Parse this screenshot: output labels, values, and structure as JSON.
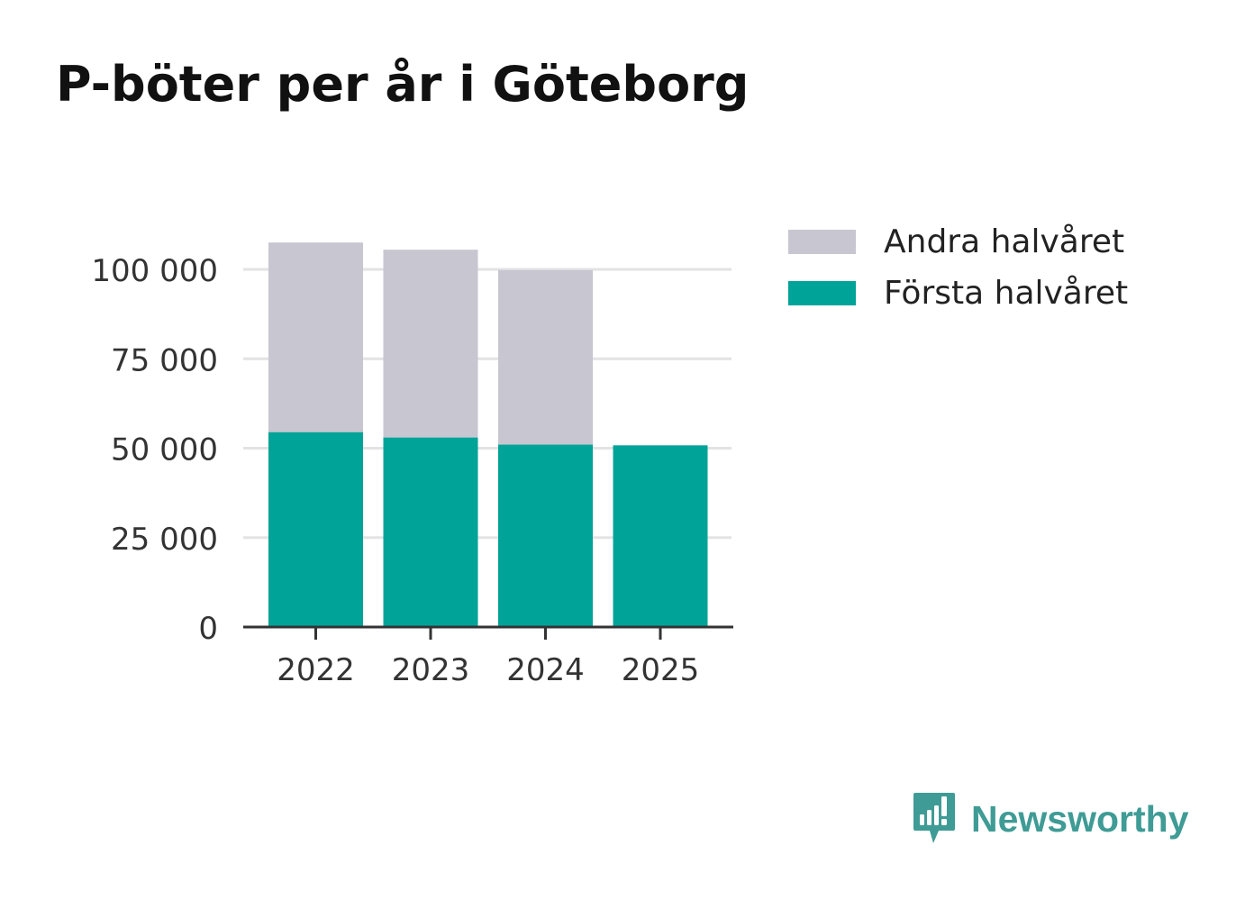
{
  "chart_data": {
    "type": "bar",
    "stacked": true,
    "title": "P-böter per år i Göteborg",
    "xlabel": "",
    "ylabel": "",
    "categories": [
      "2022",
      "2023",
      "2024",
      "2025"
    ],
    "series": [
      {
        "name": "Första halvåret",
        "color": "#00a398",
        "values": [
          54500,
          53000,
          51000,
          50800
        ]
      },
      {
        "name": "Andra halvåret",
        "color": "#c8c6d1",
        "values": [
          53000,
          52500,
          48800,
          0
        ]
      }
    ],
    "ylim": [
      0,
      110000
    ],
    "yticks": [
      0,
      25000,
      50000,
      75000,
      100000
    ],
    "ytick_labels": [
      "0",
      "25 000",
      "50 000",
      "75 000",
      "100 000"
    ],
    "grid": true,
    "legend_position": "right",
    "legend": [
      {
        "label": "Andra halvåret",
        "color": "#c8c6d1"
      },
      {
        "label": "Första halvåret",
        "color": "#00a398"
      }
    ]
  },
  "brand": {
    "name": "Newsworthy",
    "color": "#3f9b95"
  }
}
